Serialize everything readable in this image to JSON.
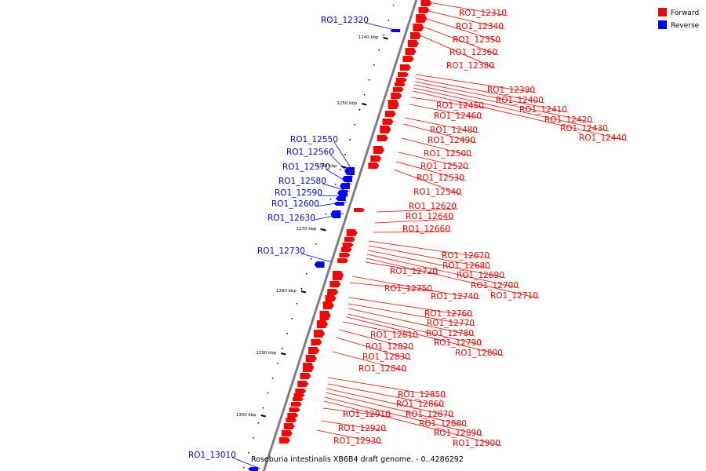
{
  "colors": {
    "forward": "#ff0000",
    "reverse": "#0000ff",
    "backbone": "#808080",
    "tick": "#000000"
  },
  "legend": {
    "forward_label": "Forward",
    "reverse_label": "Reverse"
  },
  "caption": {
    "organism": "Roseburia intestinalis XB6B4 draft genome.",
    "range": " - 0..4286292"
  },
  "scale_labels": [
    "1240 kbp",
    "1250 kbp",
    "1260 kbp",
    "1270 kbp",
    "1280 kbp",
    "1290 kbp",
    "1300 kbp"
  ],
  "forward_genes": [
    "RO1_12310",
    "RO1_12340",
    "RO1_12350",
    "RO1_12360",
    "RO1_12380",
    "RO1_12390",
    "RO1_12400",
    "RO1_12410",
    "RO1_12420",
    "RO1_12430",
    "RO1_12440",
    "RO1_12450",
    "RO1_12460",
    "RO1_12480",
    "RO1_12490",
    "RO1_12500",
    "RO1_12520",
    "RO1_12530",
    "RO1_12540",
    "RO1_12620",
    "RO1_12640",
    "RO1_12660",
    "RO1_12670",
    "RO1_12680",
    "RO1_12690",
    "RO1_12700",
    "RO1_12710",
    "RO1_12720",
    "RO1_12740",
    "RO1_12750",
    "RO1_12760",
    "RO1_12770",
    "RO1_12780",
    "RO1_12790",
    "RO1_12800",
    "RO1_12810",
    "RO1_12820",
    "RO1_12830",
    "RO1_12840",
    "RO1_12850",
    "RO1_12860",
    "RO1_12870",
    "RO1_12880",
    "RO1_12890",
    "RO1_12900",
    "RO1_12910",
    "RO1_12920",
    "RO1_12930"
  ],
  "reverse_genes": [
    "RO1_12320",
    "RO1_12550",
    "RO1_12560",
    "RO1_12570",
    "RO1_12580",
    "RO1_12590",
    "RO1_12600",
    "RO1_12630",
    "RO1_12730",
    "RO1_13010"
  ]
}
